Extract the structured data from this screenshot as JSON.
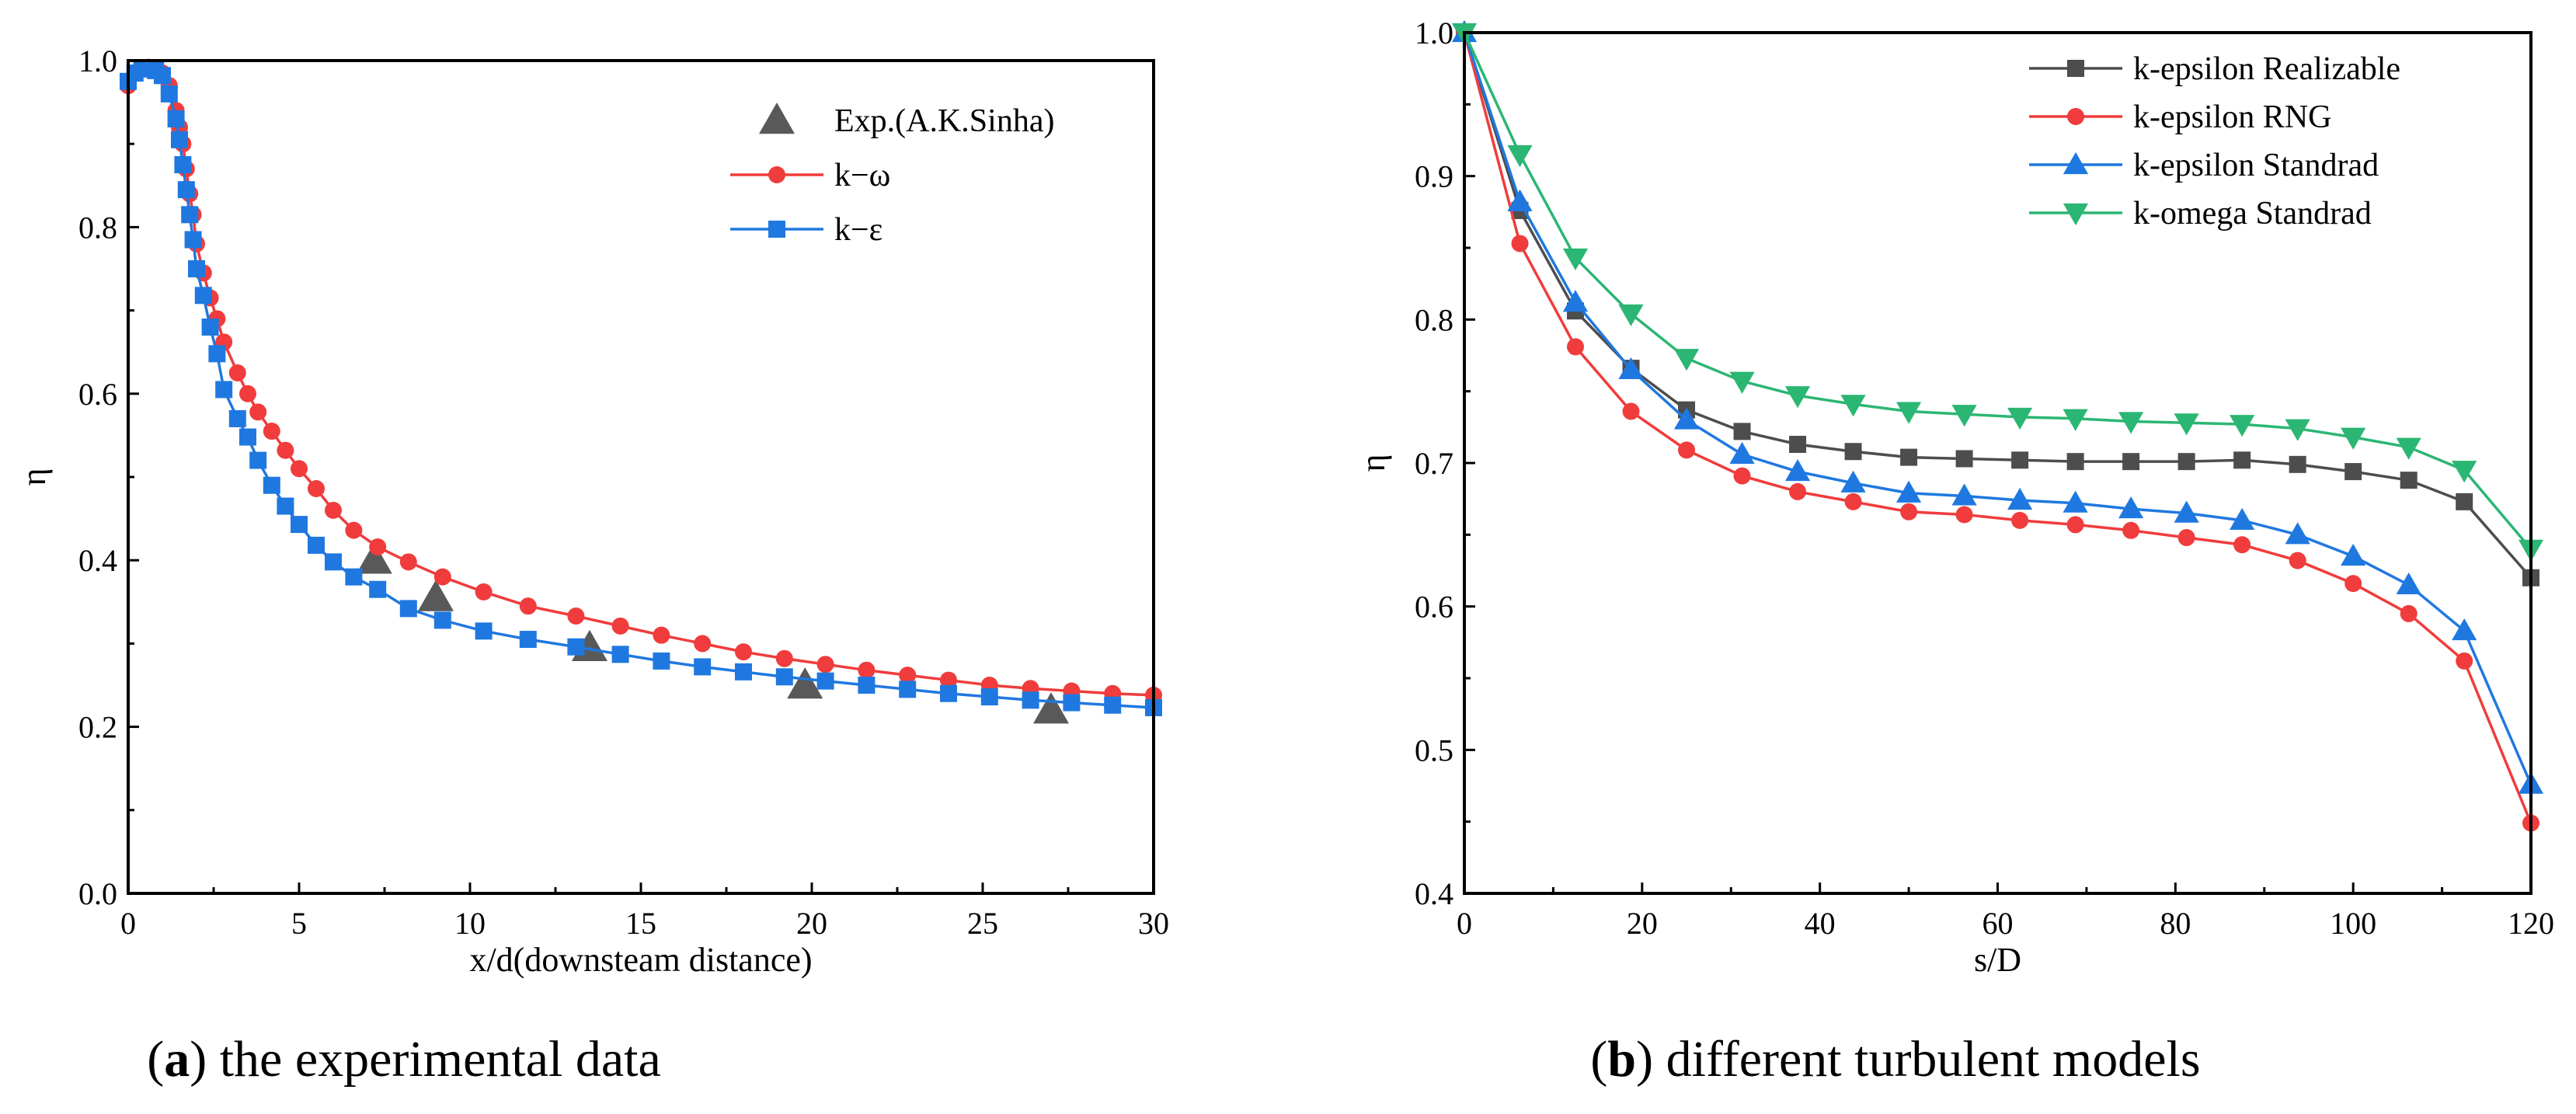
{
  "chart_data": [
    {
      "type": "line",
      "panel": "a",
      "caption_letter": "a",
      "caption_text": "the experimental data",
      "xlabel": "x/d(downsteam distance)",
      "ylabel": "η",
      "xlim": [
        0,
        30
      ],
      "ylim": [
        0,
        1.0
      ],
      "xticks": [
        0,
        5,
        10,
        15,
        20,
        25,
        30
      ],
      "xtick_labels": [
        "0",
        "5",
        "10",
        "15",
        "20",
        "25",
        "30"
      ],
      "yticks": [
        0,
        0.2,
        0.4,
        0.6,
        0.8,
        1.0
      ],
      "ytick_labels": [
        "0.0",
        "0.2",
        "0.4",
        "0.6",
        "0.8",
        "1.0"
      ],
      "grid": false,
      "legend_position": "top-right",
      "series": [
        {
          "name": "Exp.(A.K.Sinha)",
          "color": "#595959",
          "marker": "triangle-up",
          "line": false,
          "x": [
            7.2,
            9.0,
            13.5,
            19.8,
            27.0
          ],
          "y": [
            0.4,
            0.355,
            0.295,
            0.25,
            0.22
          ]
        },
        {
          "name": "k−ω",
          "color": "#f03c3c",
          "marker": "circle",
          "line": true,
          "x": [
            0.0,
            0.2,
            0.4,
            0.6,
            0.8,
            1.0,
            1.2,
            1.4,
            1.5,
            1.6,
            1.7,
            1.8,
            1.9,
            2.0,
            2.2,
            2.4,
            2.6,
            2.8,
            3.2,
            3.5,
            3.8,
            4.2,
            4.6,
            5.0,
            5.5,
            6.0,
            6.6,
            7.3,
            8.2,
            9.2,
            10.4,
            11.7,
            13.1,
            14.4,
            15.6,
            16.8,
            18.0,
            19.2,
            20.4,
            21.6,
            22.8,
            24.0,
            25.2,
            26.4,
            27.6,
            28.8,
            30.0
          ],
          "y": [
            0.97,
            0.985,
            0.99,
            0.992,
            0.99,
            0.985,
            0.97,
            0.94,
            0.92,
            0.9,
            0.87,
            0.84,
            0.815,
            0.78,
            0.745,
            0.715,
            0.69,
            0.662,
            0.625,
            0.6,
            0.578,
            0.555,
            0.532,
            0.51,
            0.486,
            0.46,
            0.436,
            0.416,
            0.398,
            0.38,
            0.362,
            0.345,
            0.333,
            0.321,
            0.31,
            0.3,
            0.29,
            0.282,
            0.275,
            0.268,
            0.262,
            0.256,
            0.25,
            0.246,
            0.243,
            0.24,
            0.238
          ]
        },
        {
          "name": "k−ε",
          "color": "#1f78e0",
          "marker": "square",
          "line": true,
          "x": [
            0.0,
            0.2,
            0.4,
            0.6,
            0.8,
            1.0,
            1.2,
            1.4,
            1.5,
            1.6,
            1.7,
            1.8,
            1.9,
            2.0,
            2.2,
            2.4,
            2.6,
            2.8,
            3.2,
            3.5,
            3.8,
            4.2,
            4.6,
            5.0,
            5.5,
            6.0,
            6.6,
            7.3,
            8.2,
            9.2,
            10.4,
            11.7,
            13.1,
            14.4,
            15.6,
            16.8,
            18.0,
            19.2,
            20.4,
            21.6,
            22.8,
            24.0,
            25.2,
            26.4,
            27.6,
            28.8,
            30.0
          ],
          "y": [
            0.975,
            0.985,
            0.99,
            0.99,
            0.988,
            0.982,
            0.96,
            0.93,
            0.905,
            0.875,
            0.845,
            0.815,
            0.785,
            0.75,
            0.718,
            0.68,
            0.648,
            0.605,
            0.57,
            0.548,
            0.52,
            0.49,
            0.465,
            0.443,
            0.418,
            0.398,
            0.38,
            0.365,
            0.342,
            0.328,
            0.315,
            0.305,
            0.296,
            0.287,
            0.279,
            0.272,
            0.266,
            0.26,
            0.255,
            0.25,
            0.245,
            0.24,
            0.236,
            0.232,
            0.229,
            0.226,
            0.223
          ]
        }
      ]
    },
    {
      "type": "line",
      "panel": "b",
      "caption_letter": "b",
      "caption_text": "different turbulent models",
      "xlabel": "s/D",
      "ylabel": "η",
      "xlim": [
        0,
        120
      ],
      "ylim": [
        0.4,
        1.0
      ],
      "xticks": [
        0,
        20,
        40,
        60,
        80,
        100,
        120
      ],
      "xtick_labels": [
        "0",
        "20",
        "40",
        "60",
        "80",
        "100",
        "120"
      ],
      "yticks": [
        0.4,
        0.5,
        0.6,
        0.7,
        0.8,
        0.9,
        1.0
      ],
      "ytick_labels": [
        "0.4",
        "0.5",
        "0.6",
        "0.7",
        "0.8",
        "0.9",
        "1.0"
      ],
      "grid": false,
      "legend_position": "top-right",
      "series": [
        {
          "name": "k-epsilon Realizable",
          "color": "#4d4d4d",
          "marker": "square",
          "line": true,
          "x": [
            0,
            6.25,
            12.5,
            18.75,
            25,
            31.25,
            37.5,
            43.75,
            50,
            56.25,
            62.5,
            68.75,
            75,
            81.25,
            87.5,
            93.75,
            100,
            106.25,
            112.5,
            120
          ],
          "y": [
            1.0,
            0.876,
            0.806,
            0.766,
            0.737,
            0.722,
            0.713,
            0.708,
            0.704,
            0.703,
            0.702,
            0.701,
            0.701,
            0.701,
            0.702,
            0.699,
            0.694,
            0.688,
            0.673,
            0.62
          ]
        },
        {
          "name": "k-epsilon RNG",
          "color": "#f03c3c",
          "marker": "circle",
          "line": true,
          "x": [
            0,
            6.25,
            12.5,
            18.75,
            25,
            31.25,
            37.5,
            43.75,
            50,
            56.25,
            62.5,
            68.75,
            75,
            81.25,
            87.5,
            93.75,
            100,
            106.25,
            112.5,
            120
          ],
          "y": [
            1.0,
            0.853,
            0.781,
            0.736,
            0.709,
            0.691,
            0.68,
            0.673,
            0.666,
            0.664,
            0.66,
            0.657,
            0.653,
            0.648,
            0.643,
            0.632,
            0.616,
            0.595,
            0.562,
            0.449
          ]
        },
        {
          "name": "k-epsilon Standrad",
          "color": "#1f78e0",
          "marker": "triangle-up",
          "line": true,
          "x": [
            0,
            6.25,
            12.5,
            18.75,
            25,
            31.25,
            37.5,
            43.75,
            50,
            56.25,
            62.5,
            68.75,
            75,
            81.25,
            87.5,
            93.75,
            100,
            106.25,
            112.5,
            120
          ],
          "y": [
            1.0,
            0.882,
            0.812,
            0.765,
            0.73,
            0.706,
            0.694,
            0.686,
            0.679,
            0.677,
            0.674,
            0.672,
            0.668,
            0.665,
            0.66,
            0.65,
            0.635,
            0.615,
            0.583,
            0.476
          ]
        },
        {
          "name": "k-omega Standrad",
          "color": "#2bb673",
          "marker": "triangle-down",
          "line": true,
          "x": [
            0,
            6.25,
            12.5,
            18.75,
            25,
            31.25,
            37.5,
            43.75,
            50,
            56.25,
            62.5,
            68.75,
            75,
            81.25,
            87.5,
            93.75,
            100,
            106.25,
            112.5,
            120
          ],
          "y": [
            1.0,
            0.915,
            0.843,
            0.804,
            0.773,
            0.757,
            0.747,
            0.741,
            0.736,
            0.734,
            0.732,
            0.731,
            0.729,
            0.728,
            0.727,
            0.724,
            0.718,
            0.711,
            0.695,
            0.64
          ]
        }
      ]
    }
  ]
}
